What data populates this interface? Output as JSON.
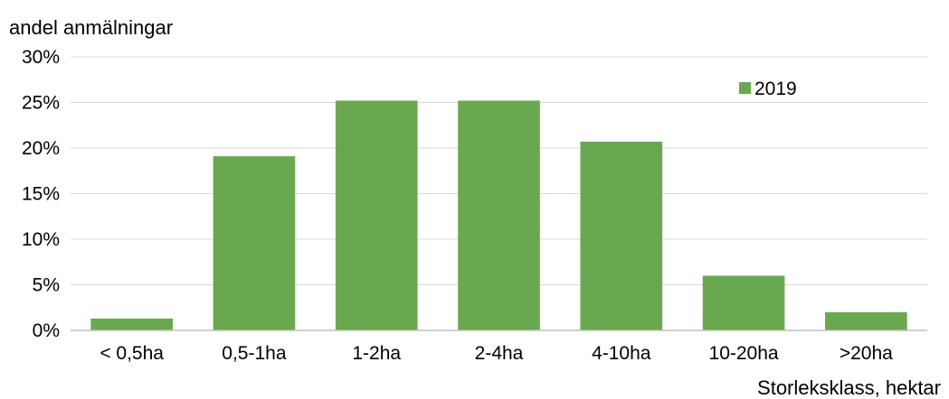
{
  "chart_data": {
    "type": "bar",
    "ylabel": "andel anmälningar",
    "xlabel": "Storleksklass, hektar",
    "categories": [
      "< 0,5ha",
      "0,5-1ha",
      "1-2ha",
      "2-4ha",
      "4-10ha",
      "10-20ha",
      ">20ha"
    ],
    "series": [
      {
        "name": "2019",
        "values": [
          1.3,
          19.1,
          25.2,
          25.2,
          20.7,
          6.0,
          2.0
        ],
        "color": "#6aa84f"
      }
    ],
    "yticks": [
      "0%",
      "5%",
      "10%",
      "15%",
      "20%",
      "25%",
      "30%"
    ],
    "ylim": [
      0,
      30
    ],
    "grid": true,
    "legend_position": "top-right"
  }
}
